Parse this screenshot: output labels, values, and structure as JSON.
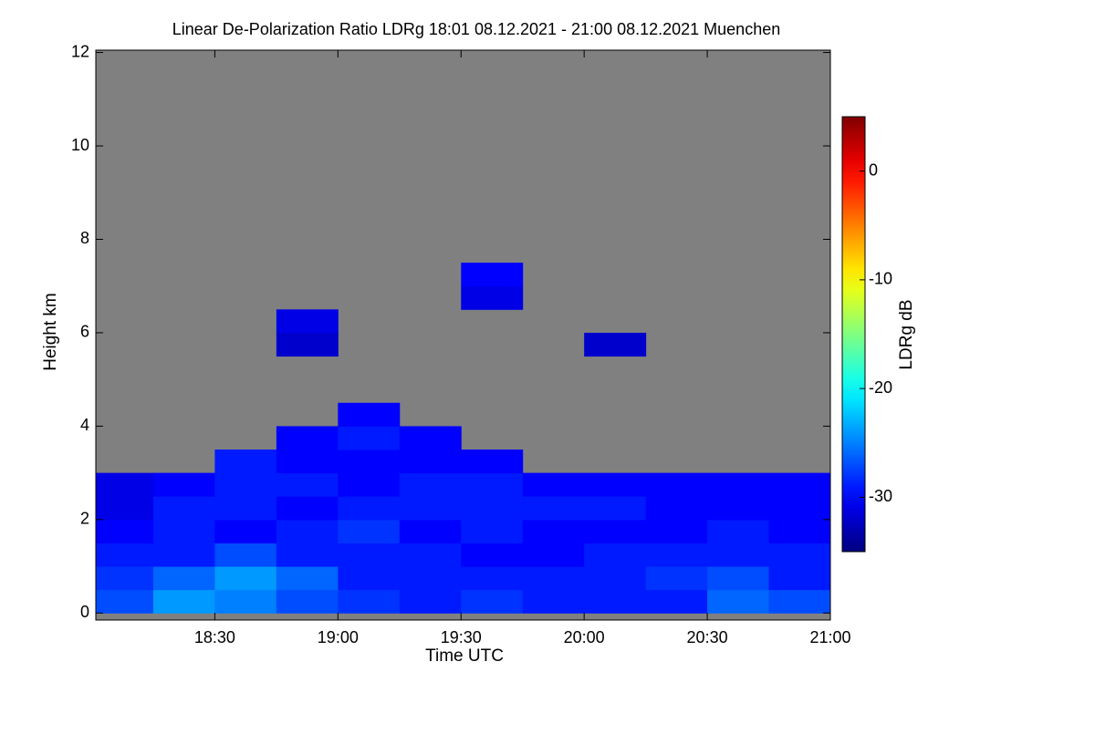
{
  "chart_data": {
    "type": "heatmap",
    "title": "Linear De-Polarization Ratio LDRg   18:01 08.12.2021 - 21:00 08.12.2021 Muenchen",
    "x_label": "Time UTC",
    "y_label": "Height km",
    "colorbar_label": "LDRg dB",
    "background_color": "#808080",
    "x": [
      18.125,
      18.375,
      18.625,
      18.875,
      19.125,
      19.375,
      19.625,
      19.875,
      20.125,
      20.375,
      20.625,
      20.875
    ],
    "y": [
      0.25,
      0.75,
      1.25,
      1.75,
      2.25,
      2.75,
      3.25,
      3.75,
      4.25,
      4.75,
      5.25,
      5.75,
      6.25,
      6.75,
      7.25
    ],
    "z": [
      [
        -27,
        -24,
        -25,
        -27,
        -28,
        -29,
        -28,
        -29,
        -29,
        -29,
        -26,
        -27
      ],
      [
        -28,
        -26,
        -24,
        -26,
        -29,
        -29,
        -29,
        -29,
        -29,
        -28,
        -27,
        -29
      ],
      [
        -29,
        -29,
        -27,
        -29,
        -29,
        -29,
        -30,
        -30,
        -29,
        -29,
        -29,
        -29
      ],
      [
        -30,
        -29,
        -30,
        -29,
        -28,
        -30,
        -29,
        -30,
        -30,
        -30,
        -29,
        -30
      ],
      [
        -31,
        -29,
        -29,
        -30,
        -29,
        -29,
        -29,
        -29,
        -29,
        -30,
        -30,
        -30
      ],
      [
        -31,
        -30,
        -29,
        -29,
        -30,
        -29,
        -29,
        -30,
        -30,
        -30,
        -30,
        -30
      ],
      [
        null,
        null,
        -29,
        -30,
        -30,
        -30,
        -30,
        null,
        null,
        null,
        null,
        null
      ],
      [
        null,
        null,
        null,
        -30,
        -29,
        -30,
        null,
        null,
        null,
        null,
        null,
        null
      ],
      [
        null,
        null,
        null,
        null,
        -30,
        null,
        null,
        null,
        null,
        null,
        null,
        null
      ],
      [
        null,
        null,
        null,
        null,
        null,
        null,
        null,
        null,
        null,
        null,
        null,
        null
      ],
      [
        null,
        null,
        null,
        null,
        null,
        null,
        null,
        null,
        null,
        null,
        null,
        null
      ],
      [
        null,
        null,
        null,
        -32,
        null,
        null,
        null,
        null,
        -32,
        null,
        null,
        null
      ],
      [
        null,
        null,
        null,
        -31,
        null,
        null,
        null,
        null,
        null,
        null,
        null,
        null
      ],
      [
        null,
        null,
        null,
        null,
        null,
        null,
        -31,
        null,
        null,
        null,
        null,
        null
      ],
      [
        null,
        null,
        null,
        null,
        null,
        null,
        -30,
        null,
        null,
        null,
        null,
        null
      ]
    ],
    "xlim": [
      18.0167,
      21.0
    ],
    "xticks": [
      {
        "value": 18.5,
        "label": "18:30"
      },
      {
        "value": 19.0,
        "label": "19:00"
      },
      {
        "value": 19.5,
        "label": "19:30"
      },
      {
        "value": 20.0,
        "label": "20:00"
      },
      {
        "value": 20.5,
        "label": "20:30"
      },
      {
        "value": 21.0,
        "label": "21:00"
      }
    ],
    "ylim": [
      -0.15,
      12.05
    ],
    "yticks": [
      0,
      2,
      4,
      6,
      8,
      10,
      12
    ],
    "zlim": [
      -35,
      5
    ],
    "zticks": [
      0,
      -10,
      -20,
      -30
    ],
    "colormap": "jet"
  }
}
